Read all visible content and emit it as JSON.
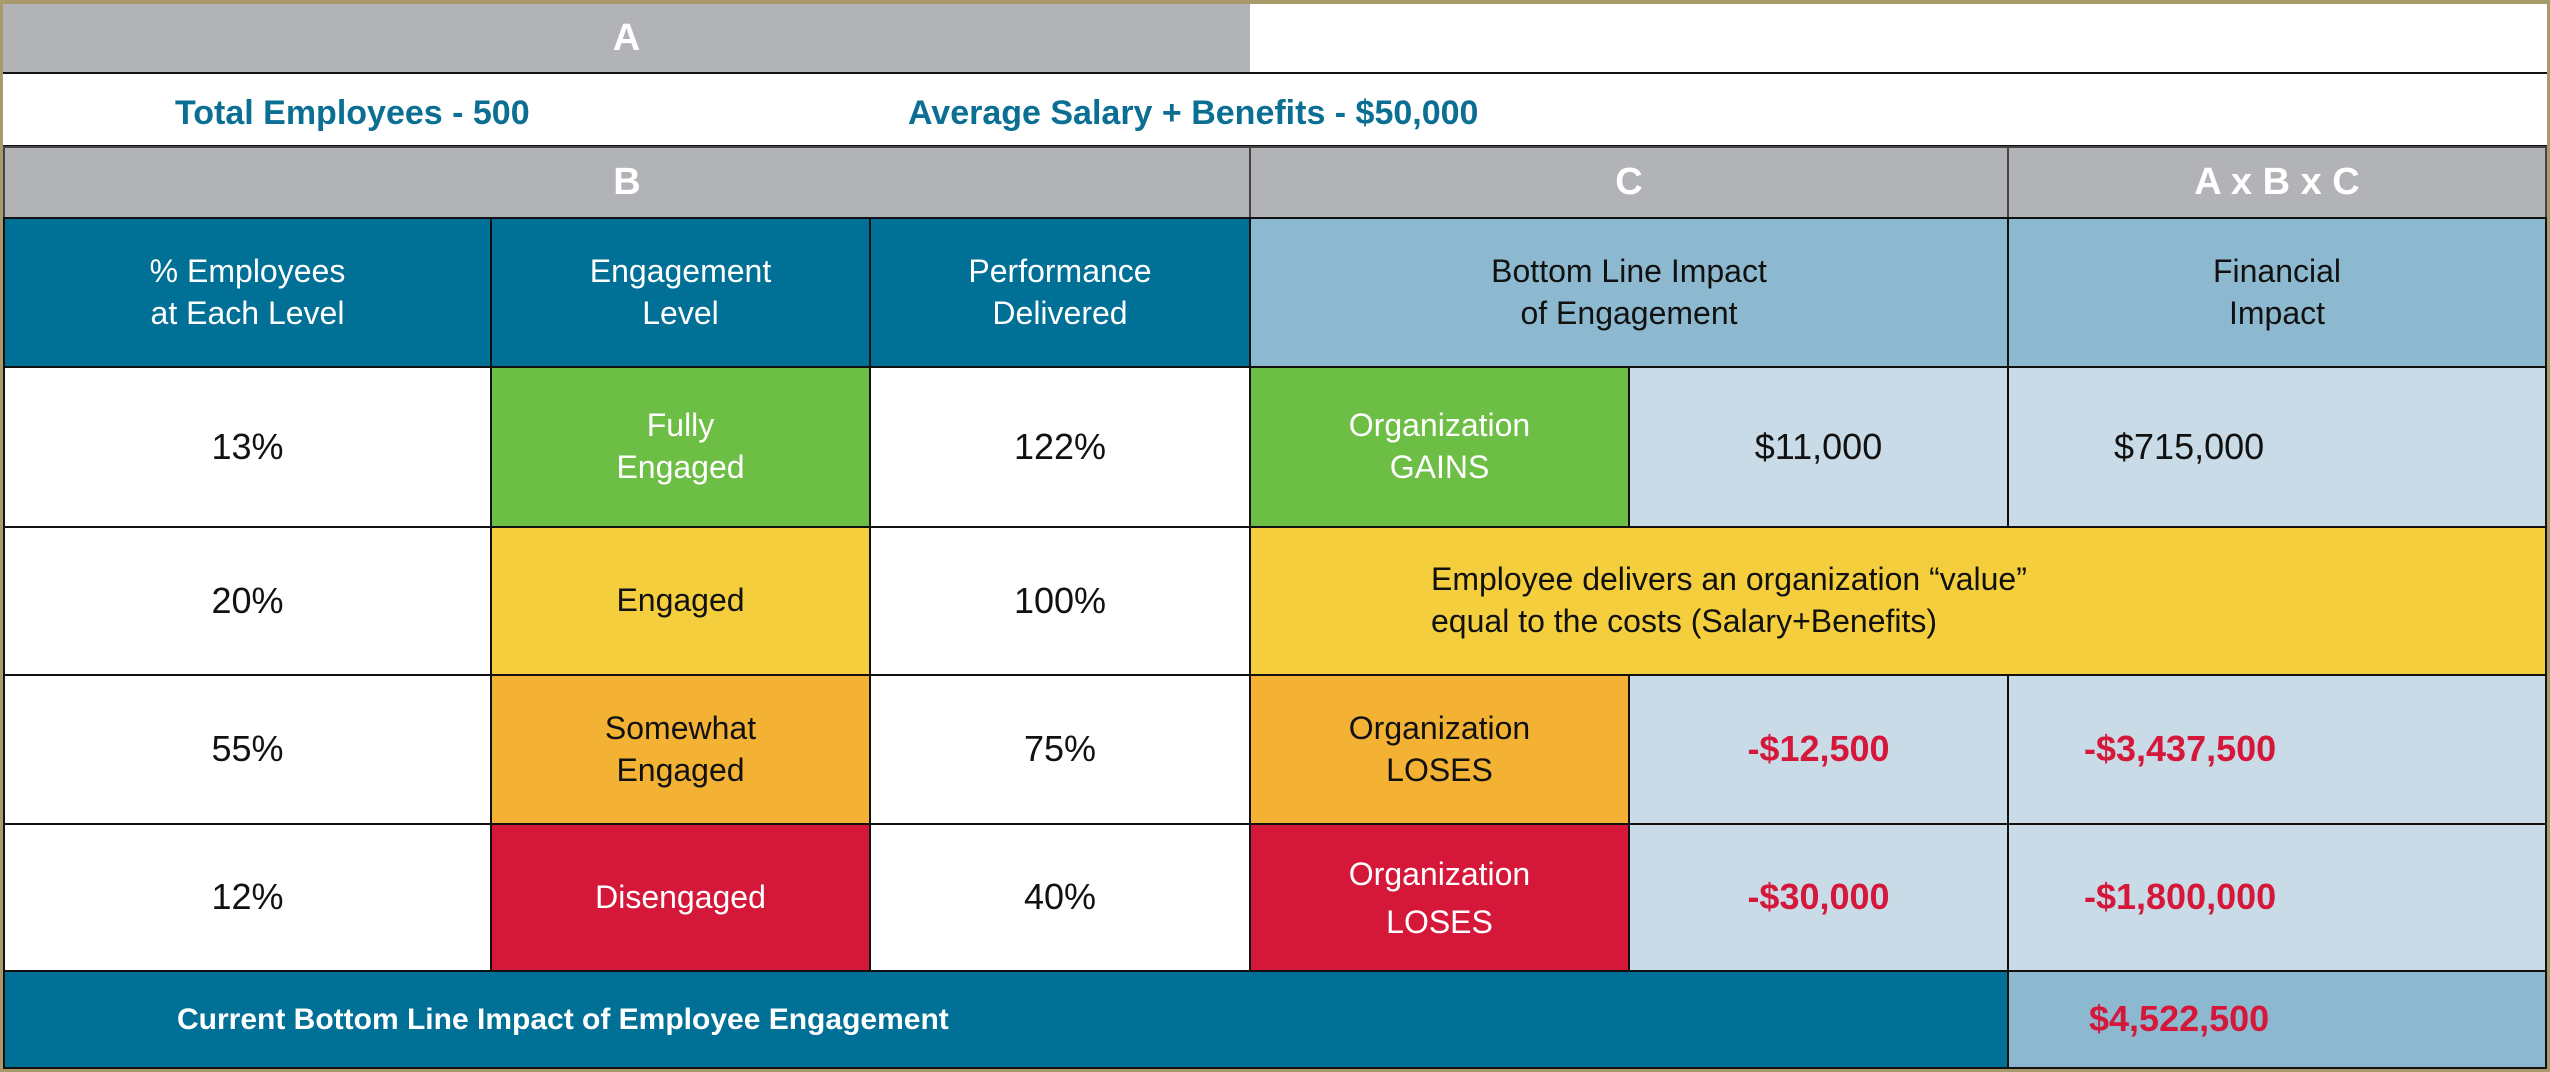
{
  "headers": {
    "a": "A",
    "b": "B",
    "c": "C",
    "abc": "A x B x C"
  },
  "summary": {
    "total_employees": "Total Employees - 500",
    "average_salary": "Average Salary + Benefits - $50,000"
  },
  "columns": {
    "pct": [
      "% Employees",
      "at Each Level"
    ],
    "level": [
      "Engagement",
      "Level"
    ],
    "performance": [
      "Performance",
      "Delivered"
    ],
    "bottom_line": [
      "Bottom Line Impact",
      "of Engagement"
    ],
    "financial": [
      "Financial",
      "Impact"
    ]
  },
  "rows": [
    {
      "pct": "13%",
      "level": [
        "Fully",
        "Engaged"
      ],
      "performance": "122%",
      "org": [
        "Organization",
        "GAINS"
      ],
      "per_employee": "$11,000",
      "financial": "$715,000"
    },
    {
      "pct": "20%",
      "level": [
        "Engaged"
      ],
      "performance": "100%",
      "note": [
        "Employee delivers an organization “value”",
        "equal to the costs (Salary+Benefits)"
      ]
    },
    {
      "pct": "55%",
      "level": [
        "Somewhat",
        "Engaged"
      ],
      "performance": "75%",
      "org": [
        "Organization",
        "LOSES"
      ],
      "per_employee": "-$12,500",
      "financial": "-$3,437,500"
    },
    {
      "pct": "12%",
      "level": [
        "Disengaged"
      ],
      "performance": "40%",
      "org": [
        "Organization",
        "LOSES"
      ],
      "per_employee": "-$30,000",
      "financial": "-$1,800,000"
    }
  ],
  "footer": {
    "label": "Current Bottom Line Impact of Employee Engagement",
    "total": "$4,522,500"
  },
  "colors": {
    "teal": "#017096",
    "gray": "#b2b3b7",
    "green": "#6dbe45",
    "yellow": "#f4ce3c",
    "orange": "#f3b234",
    "red": "#d5183a",
    "pale_blue": "#c8dbe6",
    "light_blue": "#8db9d0"
  }
}
